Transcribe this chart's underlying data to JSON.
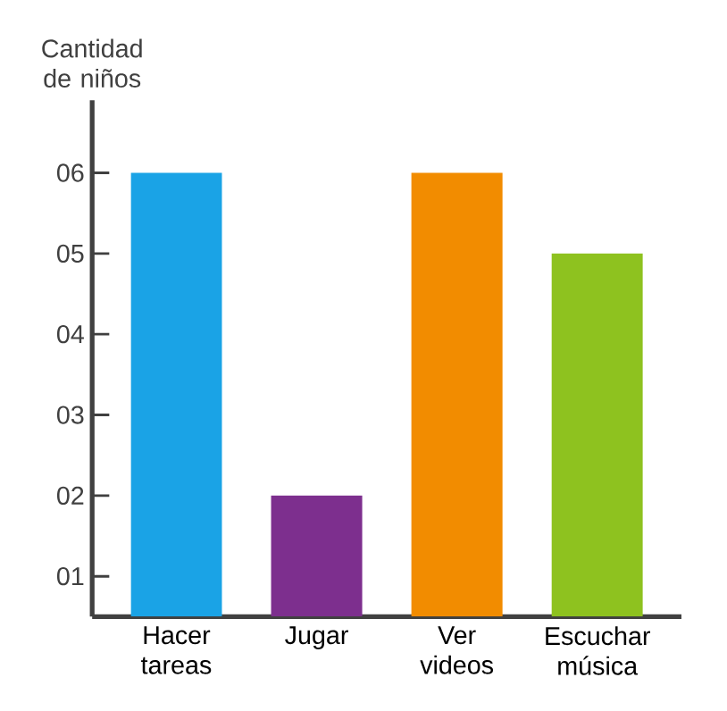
{
  "chart_data": {
    "type": "bar",
    "ylabel": "Cantidad de niños",
    "categories": [
      "Hacer tareas",
      "Jugar",
      "Ver videos",
      "Escuchar música"
    ],
    "values": [
      6,
      2,
      6,
      5
    ],
    "colors": [
      "#1aa3e6",
      "#7d2f8e",
      "#f28c00",
      "#8ec21f"
    ],
    "ylim": [
      0.5,
      6.9
    ],
    "yticks": [
      {
        "value": 1,
        "label": "01"
      },
      {
        "value": 2,
        "label": "02"
      },
      {
        "value": 3,
        "label": "03"
      },
      {
        "value": 4,
        "label": "04"
      },
      {
        "value": 5,
        "label": "05"
      },
      {
        "value": 6,
        "label": "06"
      }
    ],
    "grid": false
  }
}
